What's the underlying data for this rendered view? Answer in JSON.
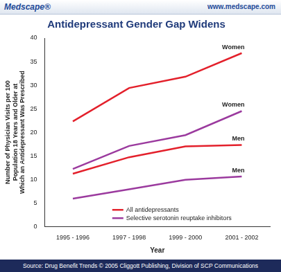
{
  "header": {
    "brand": "Medscape®",
    "url": "www.medscape.com"
  },
  "chart_data": {
    "type": "line",
    "title": "Antidepressant Gender Gap Widens",
    "x_label": "Year",
    "y_label": [
      "Number of Physician Visits per 100",
      "Population 18 Years and Older at",
      "Which an Antidepressant Was Prescribed"
    ],
    "categories": [
      "1995 - 1996",
      "1997 - 1998",
      "1999 - 2000",
      "2001 - 2002"
    ],
    "series": [
      {
        "name": "Women",
        "color": "#e3202b",
        "values": [
          22.3,
          29.4,
          31.8,
          36.8
        ]
      },
      {
        "name": "Women",
        "color": "#9b3a9e",
        "values": [
          12.2,
          17.1,
          19.4,
          24.5
        ]
      },
      {
        "name": "Men",
        "color": "#e3202b",
        "values": [
          11.2,
          14.7,
          17.0,
          17.3
        ]
      },
      {
        "name": "Men",
        "color": "#9b3a9e",
        "values": [
          5.9,
          7.9,
          9.9,
          10.6
        ]
      }
    ],
    "legend_items": [
      {
        "name": "All antidepressants",
        "color": "#e3202b"
      },
      {
        "name": "Selective serotonin reuptake inhibitors",
        "color": "#9b3a9e"
      }
    ],
    "ylim": [
      0,
      40
    ],
    "yticks": [
      0,
      5,
      10,
      15,
      20,
      25,
      30,
      35,
      40
    ],
    "grid": false,
    "legend": "bottom",
    "marker": "none",
    "line_style": "solid"
  },
  "footer": "Source: Drug Benefit Trends © 2005 Cliggott Publishing, Division of SCP Communications"
}
